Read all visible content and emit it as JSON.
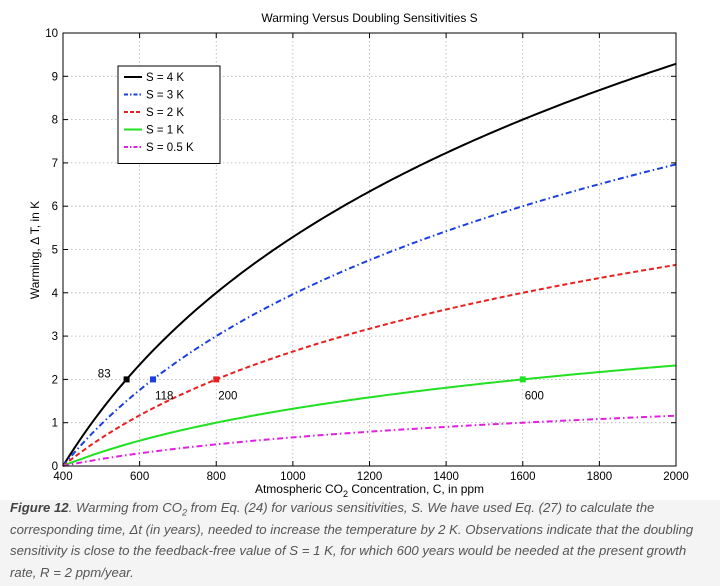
{
  "chart_data": {
    "type": "line",
    "title": "Warming Versus Doubling Sensitivities S",
    "xlabel": {
      "prefix": "Atmospheric CO",
      "sub": "2",
      "suffix": " Concentration, C, in ppm"
    },
    "ylabel": "Warming, Δ T,  in K",
    "xlim": [
      400,
      2000
    ],
    "ylim": [
      0,
      10
    ],
    "xticks": [
      400,
      600,
      800,
      1000,
      1200,
      1400,
      1600,
      1800,
      2000
    ],
    "yticks": [
      0,
      1,
      2,
      3,
      4,
      5,
      6,
      7,
      8,
      9,
      10
    ],
    "grid": true,
    "legend_position": "top-left",
    "x0": 400,
    "series": [
      {
        "name": "S = 4 K",
        "S": 4,
        "color": "#000000",
        "dash": "solid"
      },
      {
        "name": "S = 3 K",
        "S": 3,
        "color": "#1a3fe0",
        "dash": "dashdot"
      },
      {
        "name": "S = 2 K",
        "S": 2,
        "color": "#e82020",
        "dash": "dashed"
      },
      {
        "name": "S = 1 K",
        "S": 1,
        "color": "#22e022",
        "dash": "solid"
      },
      {
        "name": "S = 0.5 K",
        "S": 0.5,
        "color": "#e020e0",
        "dash": "dashdot"
      }
    ],
    "markers": [
      {
        "series": 0,
        "x": 566,
        "y": 2,
        "label": "83",
        "label_pos": "left"
      },
      {
        "series": 1,
        "x": 635,
        "y": 2,
        "label": "118",
        "label_pos": "below-right"
      },
      {
        "series": 2,
        "x": 800,
        "y": 2,
        "label": "200",
        "label_pos": "below-right"
      },
      {
        "series": 3,
        "x": 1600,
        "y": 2,
        "label": "600",
        "label_pos": "below-right"
      }
    ]
  },
  "caption": {
    "fig_label": "Figure 12",
    "t1": ". Warming from CO",
    "t1_sub": "2",
    "t2": " from Eq. (24) for various sensitivities, S. We have used Eq. (27) to calculate the corresponding time, Δt (in years), needed to increase the temperature by 2 K. Observations indicate that the doubling sensitivity is close to the feedback-free value of S = 1 K, for which 600 years would be needed at the present growth rate, R = 2 ppm/year."
  }
}
